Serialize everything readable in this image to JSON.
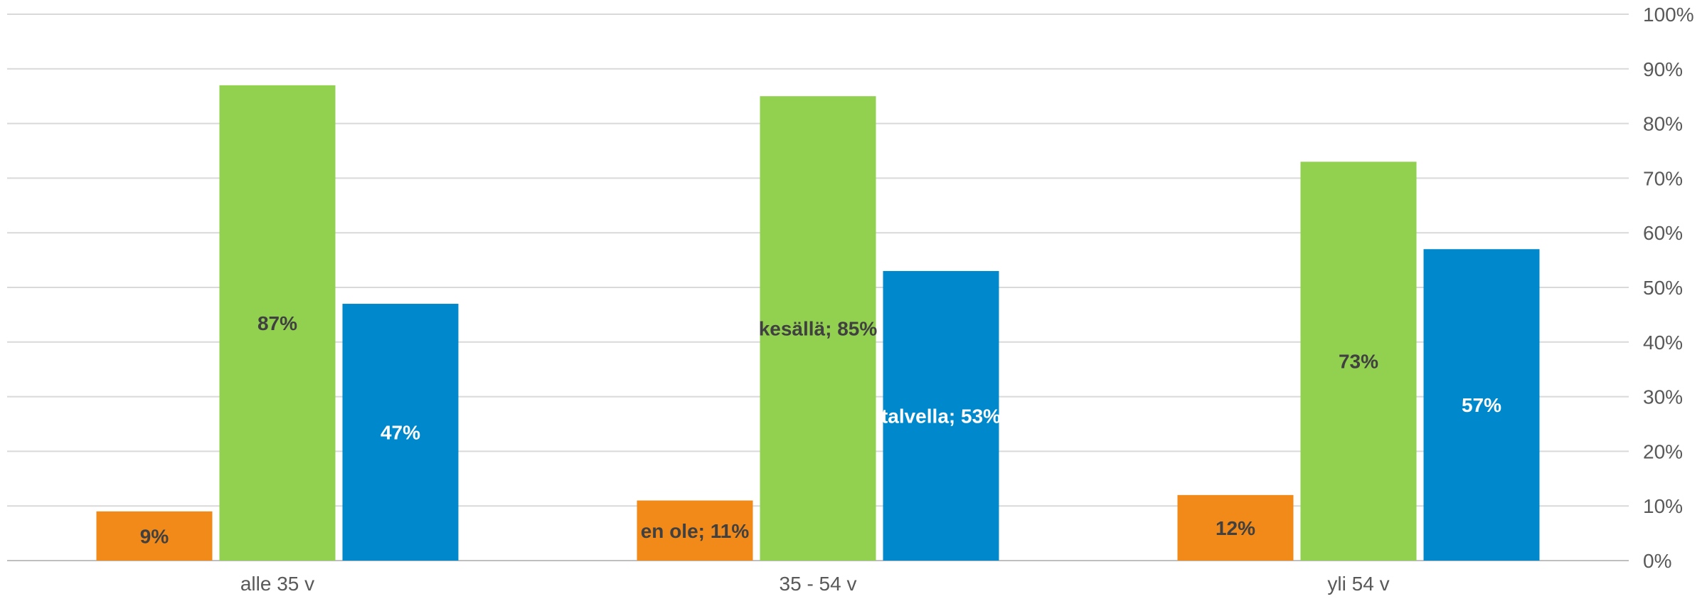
{
  "chart_data": {
    "type": "bar",
    "categories": [
      "alle 35 v",
      "35 - 54 v",
      "yli 54 v"
    ],
    "series": [
      {
        "name": "en ole",
        "color": "#f28a1a",
        "values": [
          9,
          11,
          12
        ],
        "labels": [
          "9%",
          "en ole; 11%",
          "12%"
        ],
        "label_color": "#404040"
      },
      {
        "name": "kesällä",
        "color": "#92d050",
        "values": [
          87,
          85,
          73
        ],
        "labels": [
          "87%",
          "kesällä; 85%",
          "73%"
        ],
        "label_color": "#404040"
      },
      {
        "name": "talvella",
        "color": "#0088cc",
        "values": [
          47,
          53,
          57
        ],
        "labels": [
          "47%",
          "talvella;    53%",
          "57%"
        ],
        "label_color": "#ffffff"
      }
    ],
    "ylim": [
      0,
      100
    ],
    "yticks": [
      "0%",
      "10%",
      "20%",
      "30%",
      "40%",
      "50%",
      "60%",
      "70%",
      "80%",
      "90%",
      "100%"
    ],
    "grid": true,
    "y_axis_side": "right",
    "title": "",
    "xlabel": "",
    "ylabel": ""
  }
}
